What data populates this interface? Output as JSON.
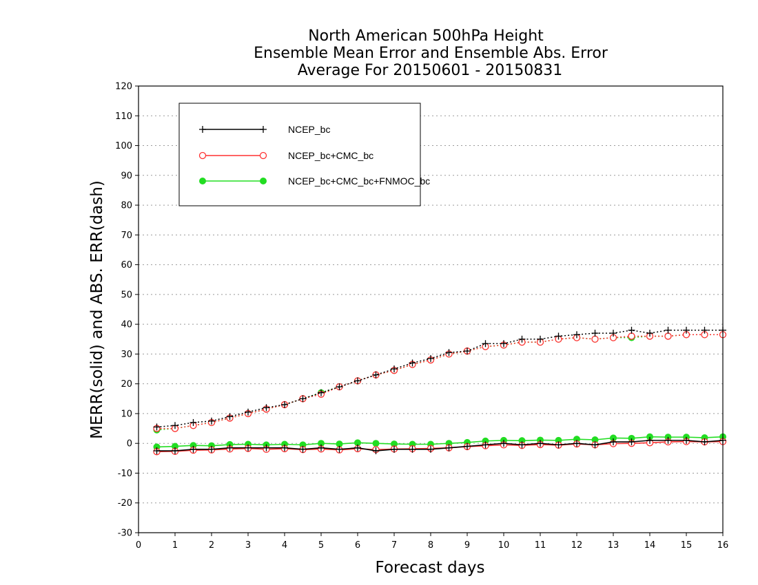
{
  "chart_data": {
    "type": "line",
    "title": [
      "North American 500hPa Height",
      "Ensemble Mean Error and Ensemble Abs. Error",
      "Average For 20150601 - 20150831"
    ],
    "xlabel": "Forecast days",
    "ylabel": "MERR(solid) and ABS. ERR(dash)",
    "xlim": [
      0,
      16
    ],
    "ylim": [
      -30,
      120
    ],
    "x_ticks": [
      0,
      1,
      2,
      3,
      4,
      5,
      6,
      7,
      8,
      9,
      10,
      11,
      12,
      13,
      14,
      15,
      16
    ],
    "y_ticks": [
      -30,
      -20,
      -10,
      0,
      10,
      20,
      30,
      40,
      50,
      60,
      70,
      80,
      90,
      100,
      110,
      120
    ],
    "grid": true,
    "legend_position": "top-left",
    "x": [
      0.5,
      1,
      1.5,
      2,
      2.5,
      3,
      3.5,
      4,
      4.5,
      5,
      5.5,
      6,
      6.5,
      7,
      7.5,
      8,
      8.5,
      9,
      9.5,
      10,
      10.5,
      11,
      11.5,
      12,
      12.5,
      13,
      13.5,
      14,
      14.5,
      15,
      15.5,
      16
    ],
    "series": [
      {
        "name": "NCEP_bc",
        "color": "#000000",
        "marker": "plus",
        "merr": [
          -2.5,
          -2.5,
          -2,
          -2,
          -1.5,
          -1.5,
          -1.5,
          -1.5,
          -2,
          -1.5,
          -2,
          -1.5,
          -2.5,
          -2,
          -2,
          -2,
          -1.5,
          -1,
          -0.5,
          0,
          -0.5,
          0,
          -0.5,
          0,
          -0.5,
          0.5,
          0.5,
          1,
          1,
          1,
          0.5,
          1
        ],
        "abs_err": [
          5.5,
          6,
          7,
          7.5,
          9,
          10.5,
          12,
          13,
          15,
          17,
          19,
          21,
          23,
          25,
          27,
          28.5,
          30.5,
          31,
          33.5,
          33.5,
          35,
          35,
          36,
          36.5,
          37,
          37,
          38,
          37,
          38,
          38,
          38,
          38
        ]
      },
      {
        "name": "NCEP_bc+CMC_bc",
        "color": "#ff3030",
        "marker": "circle-open",
        "merr": [
          -2.8,
          -2.7,
          -2.3,
          -2.2,
          -1.9,
          -1.7,
          -2,
          -1.8,
          -2.1,
          -1.9,
          -2.2,
          -1.8,
          -2.1,
          -1.9,
          -1.8,
          -1.7,
          -1.5,
          -1.1,
          -0.8,
          -0.5,
          -0.7,
          -0.4,
          -0.6,
          -0.2,
          -0.5,
          -0.1,
          0,
          0.2,
          0.5,
          0.6,
          0.5,
          0.6
        ],
        "abs_err": [
          5,
          5,
          6,
          7,
          8.5,
          10,
          11.5,
          13,
          15,
          16.5,
          19,
          21,
          23,
          24.5,
          26.5,
          28,
          30,
          31,
          32.5,
          33,
          34,
          34,
          35,
          35.5,
          35,
          35.5,
          36,
          36,
          36,
          36.5,
          36.5,
          36.5
        ]
      },
      {
        "name": "NCEP_bc+CMC_bc+FNMOC_bc",
        "color": "#22dd22",
        "marker": "circle-filled",
        "merr": [
          -1.2,
          -1,
          -0.7,
          -0.8,
          -0.4,
          -0.3,
          -0.5,
          -0.3,
          -0.5,
          0,
          -0.2,
          0.2,
          0,
          -0.2,
          -0.3,
          -0.3,
          0,
          0.3,
          0.8,
          1,
          0.9,
          1.1,
          1,
          1.4,
          1.2,
          1.8,
          1.7,
          2.2,
          2.1,
          2.1,
          1.9,
          2.2
        ],
        "abs_err": [
          4.5,
          5,
          6,
          7,
          8.5,
          10,
          11.5,
          13,
          15,
          17,
          19,
          21,
          23,
          24.5,
          26.5,
          28,
          30,
          31,
          32.5,
          33,
          34,
          34,
          35,
          35.5,
          35,
          35.5,
          35.5,
          36,
          36,
          36.5,
          36.5,
          36.5
        ]
      }
    ]
  }
}
